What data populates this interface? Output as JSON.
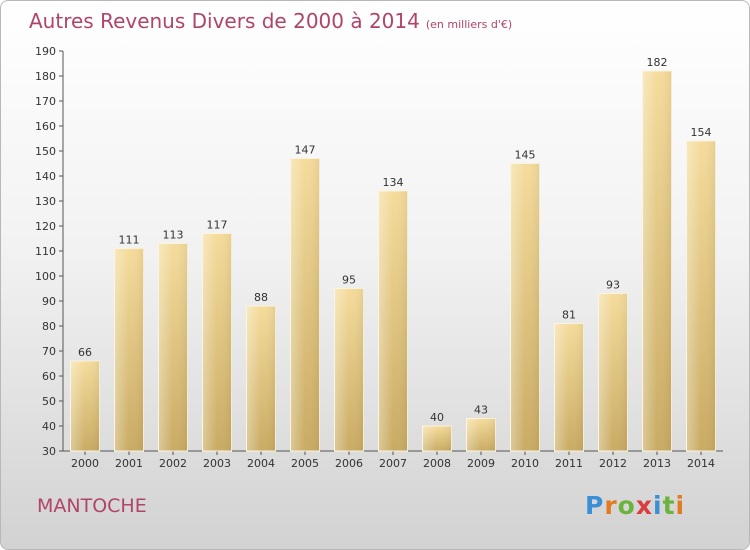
{
  "header": {
    "title": "Autres Revenus Divers de 2000 à 2014",
    "unit": "(en milliers d'€)"
  },
  "footer": {
    "city": "MANTOCHE",
    "logo_text": "Proxiti",
    "logo_colors": [
      "#3b8fd4",
      "#e07b22",
      "#6cb33e",
      "#d93d3d",
      "#3b8fd4",
      "#6cb33e",
      "#e07b22"
    ]
  },
  "chart_data": {
    "type": "bar",
    "title": "Autres Revenus Divers de 2000 à 2014",
    "categories": [
      "2000",
      "2001",
      "2002",
      "2003",
      "2004",
      "2005",
      "2006",
      "2007",
      "2008",
      "2009",
      "2010",
      "2011",
      "2012",
      "2013",
      "2014"
    ],
    "values": [
      66,
      111,
      113,
      117,
      88,
      147,
      95,
      134,
      40,
      43,
      145,
      81,
      93,
      182,
      154
    ],
    "ylim": [
      30,
      190
    ],
    "yticks": [
      30,
      40,
      50,
      60,
      70,
      80,
      90,
      100,
      110,
      120,
      130,
      140,
      150,
      160,
      170,
      180,
      190
    ],
    "grid": false,
    "bar_color": "#e6c67a"
  }
}
